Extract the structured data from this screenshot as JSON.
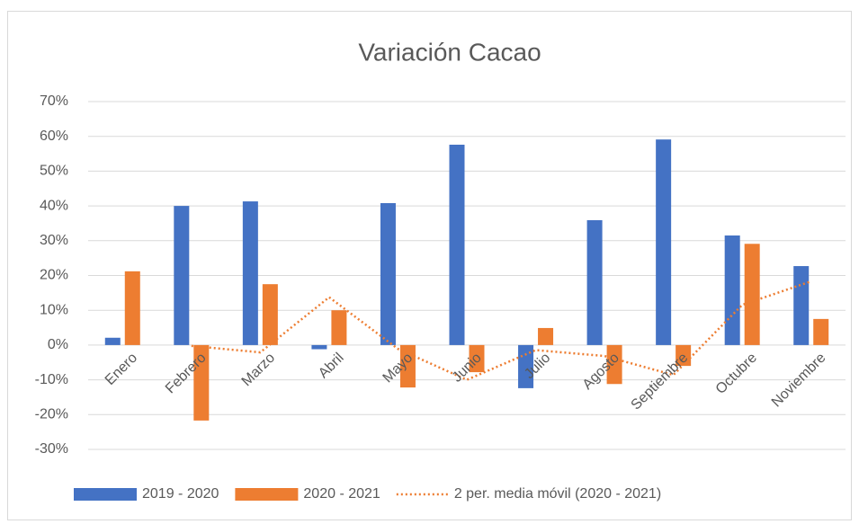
{
  "chart_data": {
    "type": "bar",
    "title": "Variación Cacao",
    "categories": [
      "Enero",
      "Febrero",
      "Marzo",
      "Abril",
      "Mayo",
      "Junio",
      "Julio",
      "Agosto",
      "Septiembre",
      "Octubre",
      "Noviembre"
    ],
    "series": [
      {
        "name": "2019 - 2020",
        "color": "#4472c4",
        "values": [
          2.1,
          40,
          41.3,
          -1.2,
          40.8,
          57.6,
          -12.4,
          35.9,
          59.1,
          31.5,
          22.7
        ]
      },
      {
        "name": "2020 - 2021",
        "color": "#ed7d31",
        "values": [
          21.2,
          -21.7,
          17.5,
          10,
          -12.2,
          -7.8,
          4.9,
          -11.2,
          -6,
          29.1,
          7.5
        ]
      },
      {
        "name": "2 per. media móvil (2020 - 2021)",
        "color": "#ed7d31",
        "type": "line",
        "dashed": true,
        "values": [
          null,
          -0.25,
          -2.1,
          13.75,
          -1.1,
          -10,
          -1.45,
          -3.15,
          -8.6,
          11.55,
          18.3
        ]
      }
    ],
    "ylim": [
      -30,
      70
    ],
    "yticks": [
      {
        "value": -30,
        "label": "-30%"
      },
      {
        "value": -20,
        "label": "-20%"
      },
      {
        "value": -10,
        "label": "-10%"
      },
      {
        "value": 0,
        "label": "0%"
      },
      {
        "value": 10,
        "label": "10%"
      },
      {
        "value": 20,
        "label": "20%"
      },
      {
        "value": 30,
        "label": "30%"
      },
      {
        "value": 40,
        "label": "40%"
      },
      {
        "value": 50,
        "label": "50%"
      },
      {
        "value": 60,
        "label": "60%"
      },
      {
        "value": 70,
        "label": "70%"
      }
    ],
    "grid": true,
    "legend": "bottom"
  }
}
